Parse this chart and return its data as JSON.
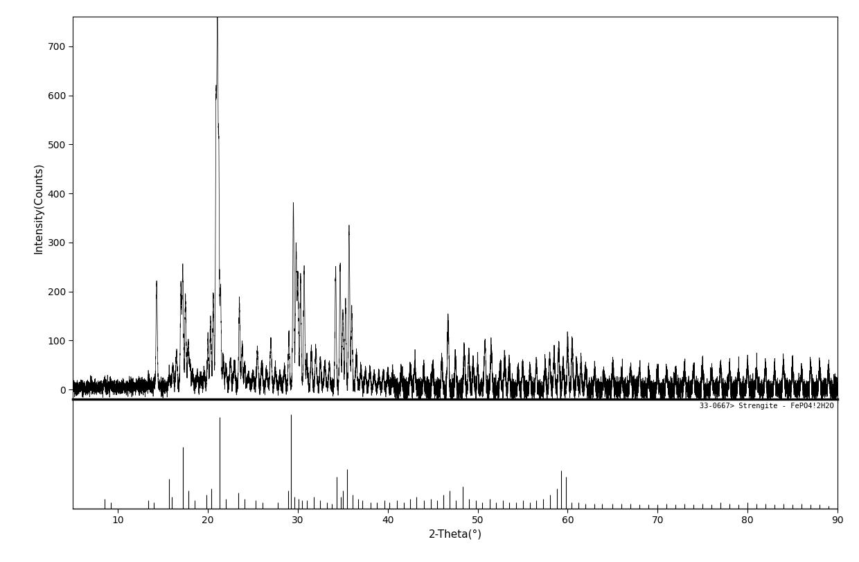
{
  "title": "",
  "xlabel": "2-Theta(°)",
  "ylabel": "Intensity(Counts)",
  "xlim": [
    5,
    90
  ],
  "ylim_upper": [
    -20,
    760
  ],
  "ylim_lower": [
    0,
    1.1
  ],
  "xticks": [
    10,
    20,
    30,
    40,
    50,
    60,
    70,
    80,
    90
  ],
  "yticks_upper": [
    0,
    100,
    200,
    300,
    400,
    500,
    600,
    700
  ],
  "reference_label": "33-0667> Strengite - FePO4!2H2O",
  "background_color": "#ffffff",
  "line_color": "#000000",
  "ref_line_color": "#000000",
  "reference_peaks": [
    [
      8.5,
      0.1
    ],
    [
      9.2,
      0.06
    ],
    [
      13.4,
      0.08
    ],
    [
      14.0,
      0.06
    ],
    [
      15.7,
      0.3
    ],
    [
      16.0,
      0.12
    ],
    [
      17.2,
      0.62
    ],
    [
      17.8,
      0.18
    ],
    [
      18.5,
      0.08
    ],
    [
      19.8,
      0.14
    ],
    [
      20.4,
      0.2
    ],
    [
      21.3,
      0.92
    ],
    [
      22.0,
      0.1
    ],
    [
      23.4,
      0.16
    ],
    [
      24.1,
      0.1
    ],
    [
      25.3,
      0.08
    ],
    [
      26.1,
      0.06
    ],
    [
      27.8,
      0.06
    ],
    [
      28.9,
      0.18
    ],
    [
      29.2,
      0.95
    ],
    [
      29.6,
      0.12
    ],
    [
      30.1,
      0.1
    ],
    [
      30.5,
      0.08
    ],
    [
      31.0,
      0.08
    ],
    [
      31.8,
      0.12
    ],
    [
      32.5,
      0.08
    ],
    [
      33.2,
      0.06
    ],
    [
      33.8,
      0.05
    ],
    [
      34.3,
      0.32
    ],
    [
      34.8,
      0.12
    ],
    [
      35.0,
      0.18
    ],
    [
      35.5,
      0.4
    ],
    [
      36.1,
      0.14
    ],
    [
      36.7,
      0.1
    ],
    [
      37.2,
      0.08
    ],
    [
      38.1,
      0.06
    ],
    [
      38.8,
      0.06
    ],
    [
      39.6,
      0.08
    ],
    [
      40.2,
      0.06
    ],
    [
      41.0,
      0.08
    ],
    [
      41.8,
      0.06
    ],
    [
      42.5,
      0.1
    ],
    [
      43.2,
      0.12
    ],
    [
      44.0,
      0.08
    ],
    [
      44.8,
      0.1
    ],
    [
      45.5,
      0.08
    ],
    [
      46.2,
      0.14
    ],
    [
      46.9,
      0.18
    ],
    [
      47.6,
      0.08
    ],
    [
      48.3,
      0.22
    ],
    [
      49.0,
      0.1
    ],
    [
      49.8,
      0.08
    ],
    [
      50.5,
      0.06
    ],
    [
      51.3,
      0.1
    ],
    [
      52.0,
      0.06
    ],
    [
      52.8,
      0.08
    ],
    [
      53.5,
      0.06
    ],
    [
      54.3,
      0.06
    ],
    [
      55.0,
      0.08
    ],
    [
      55.8,
      0.06
    ],
    [
      56.5,
      0.08
    ],
    [
      57.3,
      0.1
    ],
    [
      58.0,
      0.14
    ],
    [
      58.8,
      0.2
    ],
    [
      59.3,
      0.38
    ],
    [
      59.8,
      0.32
    ],
    [
      60.4,
      0.06
    ],
    [
      61.2,
      0.06
    ],
    [
      62.0,
      0.05
    ],
    [
      63.0,
      0.05
    ],
    [
      63.8,
      0.05
    ],
    [
      65.0,
      0.05
    ],
    [
      66.0,
      0.05
    ],
    [
      67.0,
      0.05
    ],
    [
      68.0,
      0.04
    ],
    [
      69.0,
      0.04
    ],
    [
      70.0,
      0.04
    ],
    [
      71.0,
      0.05
    ],
    [
      72.0,
      0.04
    ],
    [
      73.0,
      0.05
    ],
    [
      74.0,
      0.04
    ],
    [
      75.0,
      0.05
    ],
    [
      76.0,
      0.04
    ],
    [
      77.0,
      0.06
    ],
    [
      78.0,
      0.05
    ],
    [
      79.0,
      0.04
    ],
    [
      80.0,
      0.06
    ],
    [
      81.0,
      0.05
    ],
    [
      82.0,
      0.05
    ],
    [
      83.0,
      0.04
    ],
    [
      84.0,
      0.05
    ],
    [
      85.0,
      0.04
    ],
    [
      86.0,
      0.05
    ],
    [
      87.0,
      0.04
    ],
    [
      88.0,
      0.04
    ],
    [
      89.0,
      0.03
    ]
  ],
  "seed": 12345
}
